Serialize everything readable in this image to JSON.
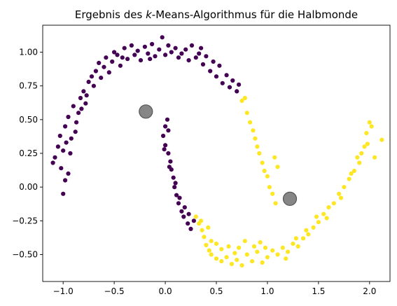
{
  "chart_data": {
    "type": "scatter",
    "title_parts": {
      "before": "Ergebnis des ",
      "italic": "k",
      "after": "-Means-Algorithmus für die Halbmonde"
    },
    "xlabel": "",
    "ylabel": "",
    "xlim": [
      -1.2,
      2.2
    ],
    "ylim": [
      -0.7,
      1.2
    ],
    "x_ticks": [
      -1.0,
      -0.5,
      0.0,
      0.5,
      1.0,
      1.5,
      2.0
    ],
    "x_tick_labels": [
      "−1.0",
      "−0.5",
      "0.0",
      "0.5",
      "1.0",
      "1.5",
      "2.0"
    ],
    "y_ticks": [
      -0.5,
      -0.25,
      0.0,
      0.25,
      0.5,
      0.75,
      1.0
    ],
    "y_tick_labels": [
      "−0.50",
      "−0.25",
      "0.00",
      "0.25",
      "0.50",
      "0.75",
      "1.00"
    ],
    "grid": false,
    "colors": {
      "cluster_0": "#440154",
      "cluster_1": "#fde725",
      "centroid": "#808080",
      "centroid_edge": "#555555"
    },
    "series": [
      {
        "color": "#440154",
        "points": [
          [
            -1.1,
            0.18
          ],
          [
            -1.05,
            0.3
          ],
          [
            -1.03,
            0.38
          ],
          [
            -1.0,
            0.27
          ],
          [
            -0.98,
            0.45
          ],
          [
            -0.95,
            0.52
          ],
          [
            -0.97,
            0.33
          ],
          [
            -0.93,
            0.25
          ],
          [
            -0.9,
            0.6
          ],
          [
            -0.88,
            0.41
          ],
          [
            -0.85,
            0.55
          ],
          [
            -0.83,
            0.66
          ],
          [
            -0.8,
            0.71
          ],
          [
            -0.78,
            0.62
          ],
          [
            -0.75,
            0.78
          ],
          [
            -0.72,
            0.82
          ],
          [
            -0.7,
            0.75
          ],
          [
            -0.68,
            0.86
          ],
          [
            -0.65,
            0.92
          ],
          [
            -0.6,
            0.89
          ],
          [
            -0.58,
            0.96
          ],
          [
            -0.55,
            0.85
          ],
          [
            -0.52,
            0.93
          ],
          [
            -0.5,
            1.0
          ],
          [
            -0.47,
            0.98
          ],
          [
            -0.44,
            0.9
          ],
          [
            -0.4,
            1.03
          ],
          [
            -0.37,
            0.95
          ],
          [
            -0.33,
            1.05
          ],
          [
            -0.3,
            0.98
          ],
          [
            -0.27,
            1.01
          ],
          [
            -0.24,
            0.94
          ],
          [
            -0.2,
            1.04
          ],
          [
            -0.17,
            0.99
          ],
          [
            -0.13,
            1.06
          ],
          [
            -0.1,
            0.97
          ],
          [
            -0.06,
            1.02
          ],
          [
            -0.03,
            1.11
          ],
          [
            0.0,
            0.98
          ],
          [
            0.03,
            1.05
          ],
          [
            0.06,
            1.0
          ],
          [
            0.1,
            1.03
          ],
          [
            0.13,
            0.96
          ],
          [
            0.16,
            0.99
          ],
          [
            0.2,
            1.02
          ],
          [
            0.23,
            0.94
          ],
          [
            0.26,
            1.05
          ],
          [
            0.3,
            0.96
          ],
          [
            0.33,
            0.99
          ],
          [
            0.37,
            0.91
          ],
          [
            0.4,
            0.97
          ],
          [
            0.44,
            0.86
          ],
          [
            0.47,
            0.93
          ],
          [
            0.5,
            0.82
          ],
          [
            0.53,
            0.9
          ],
          [
            0.56,
            0.77
          ],
          [
            0.6,
            0.83
          ],
          [
            0.63,
            0.74
          ],
          [
            0.66,
            0.79
          ],
          [
            0.7,
            0.71
          ],
          [
            0.72,
            0.76
          ],
          [
            -1.08,
            0.22
          ],
          [
            -1.02,
            0.14
          ],
          [
            -0.98,
            0.05
          ],
          [
            -1.0,
            -0.05
          ],
          [
            -0.95,
            0.1
          ],
          [
            -0.92,
            0.36
          ],
          [
            -0.87,
            0.48
          ],
          [
            -0.82,
            0.58
          ],
          [
            -0.77,
            0.68
          ],
          [
            -0.63,
            0.81
          ],
          [
            -0.42,
            0.96
          ],
          [
            -0.15,
            0.95
          ],
          [
            0.35,
            1.03
          ],
          [
            0.02,
            0.5
          ],
          [
            0.0,
            0.45
          ],
          [
            -0.02,
            0.38
          ],
          [
            0.0,
            0.31
          ],
          [
            0.03,
            0.25
          ],
          [
            0.05,
            0.19
          ],
          [
            0.06,
            0.13
          ],
          [
            0.08,
            0.07
          ],
          [
            0.09,
            0.0
          ],
          [
            0.11,
            -0.06
          ],
          [
            0.13,
            -0.12
          ],
          [
            0.16,
            -0.18
          ],
          [
            0.18,
            -0.22
          ],
          [
            0.22,
            -0.27
          ],
          [
            0.25,
            -0.31
          ],
          [
            0.03,
            0.42
          ],
          [
            -0.01,
            0.28
          ],
          [
            0.04,
            0.15
          ],
          [
            0.1,
            0.03
          ],
          [
            0.14,
            -0.08
          ],
          [
            0.19,
            -0.15
          ],
          [
            0.23,
            -0.2
          ],
          [
            0.28,
            -0.25
          ]
        ]
      },
      {
        "color": "#fde725",
        "points": [
          [
            0.75,
            0.64
          ],
          [
            0.78,
            0.66
          ],
          [
            0.8,
            0.55
          ],
          [
            0.83,
            0.48
          ],
          [
            0.86,
            0.42
          ],
          [
            0.88,
            0.36
          ],
          [
            0.9,
            0.3
          ],
          [
            0.92,
            0.25
          ],
          [
            0.95,
            0.18
          ],
          [
            0.97,
            0.12
          ],
          [
            1.0,
            0.08
          ],
          [
            1.02,
            0.0
          ],
          [
            1.05,
            -0.05
          ],
          [
            1.07,
            0.22
          ],
          [
            1.08,
            -0.12
          ],
          [
            1.1,
            0.15
          ],
          [
            0.3,
            -0.22
          ],
          [
            0.33,
            -0.27
          ],
          [
            0.36,
            -0.32
          ],
          [
            0.38,
            -0.37
          ],
          [
            0.4,
            -0.43
          ],
          [
            0.43,
            -0.47
          ],
          [
            0.45,
            -0.5
          ],
          [
            0.5,
            -0.53
          ],
          [
            0.55,
            -0.55
          ],
          [
            0.6,
            -0.52
          ],
          [
            0.65,
            -0.57
          ],
          [
            0.7,
            -0.54
          ],
          [
            0.75,
            -0.58
          ],
          [
            0.8,
            -0.5
          ],
          [
            0.85,
            -0.55
          ],
          [
            0.9,
            -0.48
          ],
          [
            0.95,
            -0.56
          ],
          [
            1.0,
            -0.52
          ],
          [
            1.05,
            -0.47
          ],
          [
            1.1,
            -0.5
          ],
          [
            1.15,
            -0.45
          ],
          [
            1.2,
            -0.48
          ],
          [
            1.25,
            -0.42
          ],
          [
            1.3,
            -0.44
          ],
          [
            1.35,
            -0.38
          ],
          [
            1.4,
            -0.35
          ],
          [
            1.45,
            -0.3
          ],
          [
            1.5,
            -0.26
          ],
          [
            1.55,
            -0.2
          ],
          [
            1.6,
            -0.15
          ],
          [
            1.65,
            -0.12
          ],
          [
            1.7,
            -0.05
          ],
          [
            1.75,
            0.0
          ],
          [
            1.8,
            0.06
          ],
          [
            1.85,
            0.12
          ],
          [
            1.9,
            0.18
          ],
          [
            1.92,
            0.25
          ],
          [
            1.95,
            0.3
          ],
          [
            1.97,
            0.4
          ],
          [
            2.0,
            0.48
          ],
          [
            2.02,
            0.45
          ],
          [
            2.05,
            0.22
          ],
          [
            2.12,
            0.35
          ],
          [
            1.98,
            0.32
          ],
          [
            0.5,
            -0.42
          ],
          [
            0.55,
            -0.46
          ],
          [
            0.62,
            -0.44
          ],
          [
            0.68,
            -0.49
          ],
          [
            0.72,
            -0.45
          ],
          [
            0.87,
            -0.44
          ],
          [
            0.93,
            -0.41
          ],
          [
            1.18,
            -0.53
          ],
          [
            1.28,
            -0.38
          ],
          [
            1.38,
            -0.32
          ],
          [
            1.48,
            -0.22
          ],
          [
            1.58,
            -0.23
          ],
          [
            1.72,
            -0.08
          ],
          [
            1.82,
            0.1
          ],
          [
            1.88,
            0.22
          ],
          [
            0.78,
            -0.4
          ],
          [
            0.98,
            -0.45
          ],
          [
            0.45,
            -0.4
          ],
          [
            0.42,
            -0.3
          ],
          [
            0.35,
            -0.25
          ]
        ]
      }
    ],
    "centroids": [
      [
        -0.19,
        0.56
      ],
      [
        1.22,
        -0.087
      ]
    ]
  }
}
